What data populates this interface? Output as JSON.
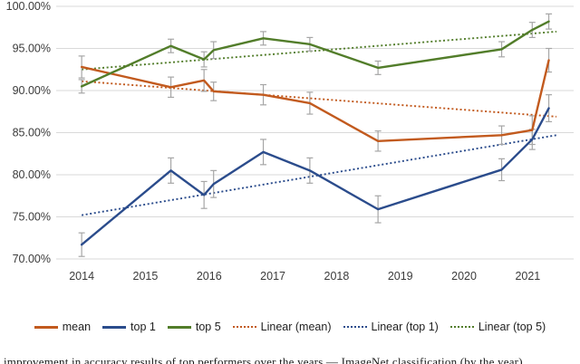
{
  "page": {
    "background": "#ffffff"
  },
  "caption": {
    "visible_fragment": "improvement in accuracy results of top performers over the years — ImageNet classification (by the year)"
  },
  "chart_data": {
    "type": "line",
    "title": "",
    "xlabel": "",
    "ylabel": "",
    "grid": "horizontal-only",
    "legend_position": "bottom",
    "ylim": [
      70,
      100
    ],
    "xlim": [
      2013.6,
      2021.72
    ],
    "y_ticks": [
      {
        "value": 100,
        "label": "100.00%"
      },
      {
        "value": 95,
        "label": "95.00%"
      },
      {
        "value": 90,
        "label": "90.00%"
      },
      {
        "value": 85,
        "label": "85.00%"
      },
      {
        "value": 80,
        "label": "80.00%"
      },
      {
        "value": 75,
        "label": "75.00%"
      },
      {
        "value": 70,
        "label": "70.00%"
      }
    ],
    "x_ticks": [
      {
        "value": 2014,
        "label": "2014"
      },
      {
        "value": 2015,
        "label": "2015"
      },
      {
        "value": 2016,
        "label": "2016"
      },
      {
        "value": 2017,
        "label": "2017"
      },
      {
        "value": 2018,
        "label": "2018"
      },
      {
        "value": 2019,
        "label": "2019"
      },
      {
        "value": 2020,
        "label": "2020"
      },
      {
        "value": 2021,
        "label": "2021"
      }
    ],
    "x": [
      2014.0,
      2015.4,
      2015.92,
      2016.07,
      2016.85,
      2017.58,
      2018.65,
      2020.59,
      2021.07,
      2021.33
    ],
    "series": [
      {
        "name": "mean",
        "style": "solid",
        "color": "#C25A1E",
        "values": [
          92.8,
          90.4,
          91.2,
          89.9,
          89.5,
          88.5,
          84.0,
          84.7,
          85.3,
          93.6
        ],
        "errors": [
          1.3,
          1.2,
          1.3,
          1.1,
          1.2,
          1.3,
          1.2,
          1.1,
          1.7,
          1.4
        ]
      },
      {
        "name": "top 1",
        "style": "solid",
        "color": "#2B4C8C",
        "values": [
          71.7,
          80.5,
          77.6,
          78.9,
          82.7,
          80.5,
          75.9,
          80.6,
          84.2,
          87.9
        ],
        "errors": [
          1.4,
          1.5,
          1.6,
          1.6,
          1.5,
          1.5,
          1.6,
          1.3,
          1.2,
          1.6
        ]
      },
      {
        "name": "top 5",
        "style": "solid",
        "color": "#527D2A",
        "values": [
          90.5,
          95.3,
          93.7,
          94.8,
          96.2,
          95.5,
          92.7,
          94.9,
          97.2,
          98.2
        ],
        "errors": [
          0.8,
          0.8,
          0.9,
          1.0,
          0.8,
          0.8,
          0.8,
          0.9,
          0.9,
          0.9
        ]
      },
      {
        "name": "Linear (mean)",
        "style": "dotted",
        "color": "#C25A1E",
        "trend_x": [
          2014.0,
          2021.45
        ],
        "trend_y": [
          91.1,
          86.9
        ]
      },
      {
        "name": "Linear (top 1)",
        "style": "dotted",
        "color": "#2B4C8C",
        "trend_x": [
          2014.0,
          2021.45
        ],
        "trend_y": [
          75.2,
          84.7
        ]
      },
      {
        "name": "Linear (top 5)",
        "style": "dotted",
        "color": "#527D2A",
        "trend_x": [
          2014.0,
          2021.45
        ],
        "trend_y": [
          92.5,
          97.0
        ]
      }
    ],
    "error_bar_color": "#A6A6A6",
    "gridline_color": "#D9D9D9",
    "axis_text_color": "#3b3b3b"
  }
}
